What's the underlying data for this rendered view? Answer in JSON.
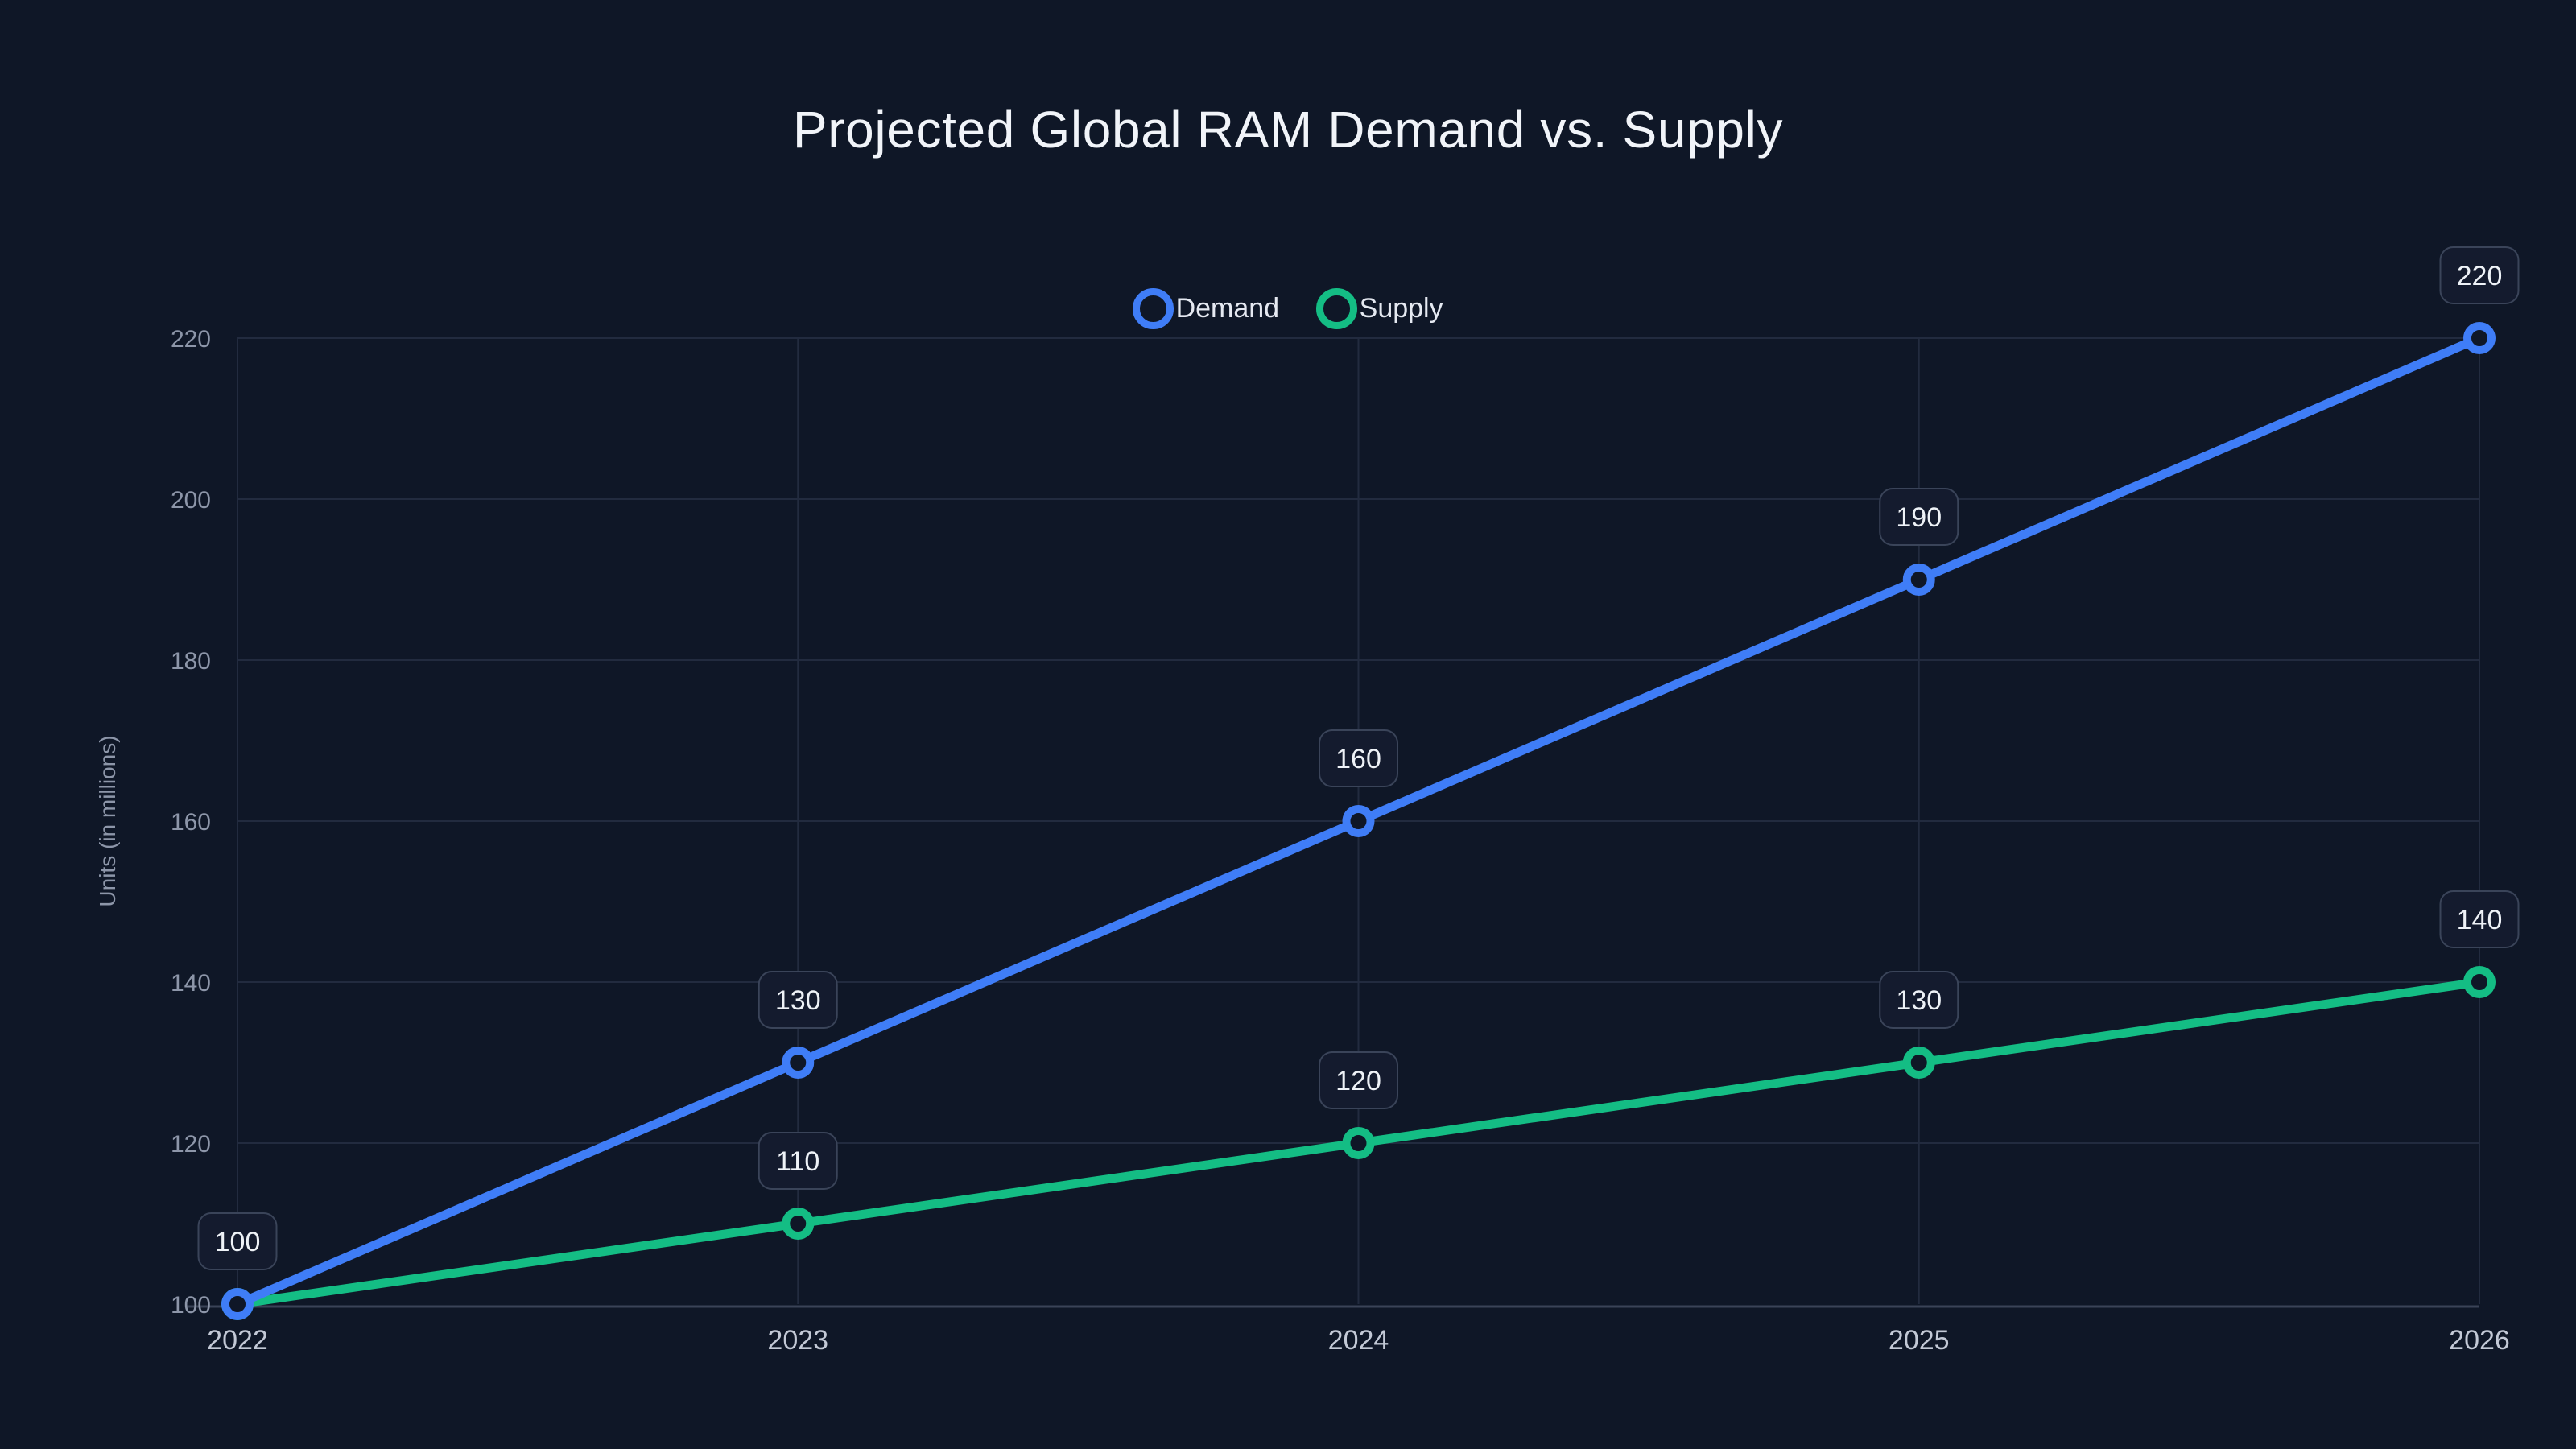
{
  "title": "Projected Global RAM Demand vs. Supply",
  "colors": {
    "background": "#0f1727",
    "grid": "#222b3f",
    "axis": "#3a4357",
    "tick_text": "#8d96a9",
    "x_tick_text": "#c3c9d6",
    "title_text": "#f1f4f9",
    "legend_text": "#e5e9f1",
    "label_box_fill": "#141b2e",
    "label_box_border": "#3a4459",
    "label_text": "#eef2f7",
    "demand_line": "#3f7df7",
    "supply_line": "#14bd84"
  },
  "chart_data": {
    "type": "line",
    "title": "Projected Global RAM Demand vs. Supply",
    "x_categories": [
      "2022",
      "2023",
      "2024",
      "2025",
      "2026"
    ],
    "series": [
      {
        "name": "Demand",
        "color": "#3f7df7",
        "values": [
          100,
          130,
          160,
          190,
          220
        ],
        "point_labels": [
          "100",
          "130",
          "160",
          "190",
          "220"
        ]
      },
      {
        "name": "Supply",
        "color": "#14bd84",
        "values": [
          100,
          110,
          120,
          130,
          140
        ],
        "point_labels": [
          null,
          "110",
          "120",
          "130",
          "140"
        ]
      }
    ],
    "xlabel": "",
    "ylabel": "Units (in millions)",
    "yticks": [
      100,
      120,
      140,
      160,
      180,
      200,
      220
    ],
    "ylim": [
      100,
      220
    ],
    "grid": true,
    "legend_position": "top-center"
  }
}
